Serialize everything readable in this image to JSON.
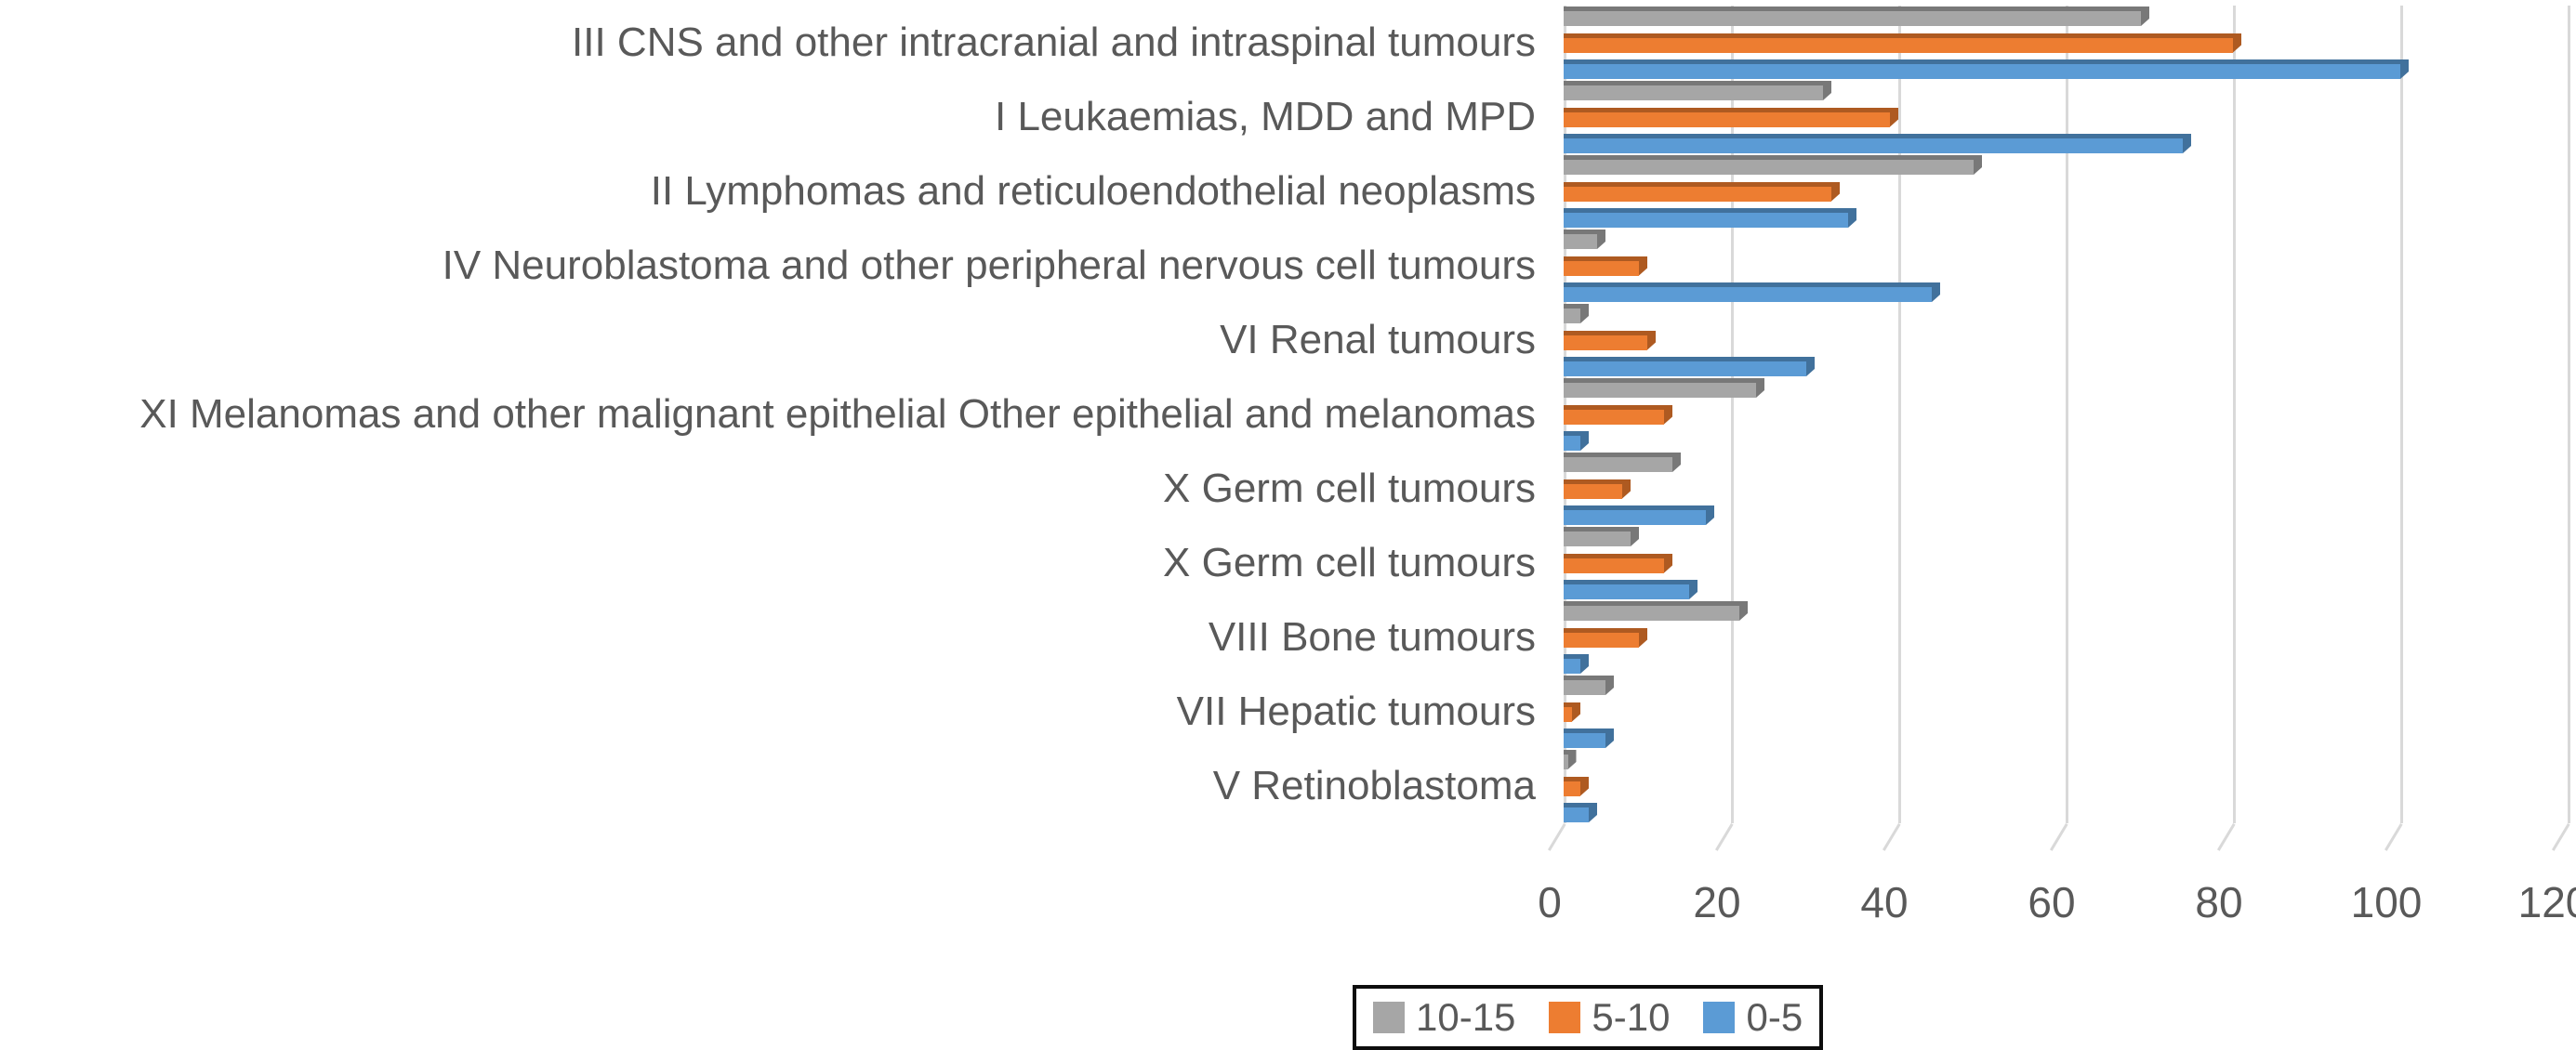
{
  "chart_data": {
    "type": "bar",
    "orientation": "horizontal",
    "title": "",
    "xlabel": "",
    "ylabel": "",
    "categories": [
      "III CNS and other intracranial and intraspinal tumours",
      "I Leukaemias, MDD and MPD",
      "II Lymphomas and reticuloendothelial neoplasms",
      "IV Neuroblastoma and other peripheral nervous cell tumours",
      "VI Renal tumours",
      "XI Melanomas and other malignant epithelial Other epithelial and melanomas",
      "X Germ cell tumours",
      "X Germ cell tumours",
      "VIII Bone tumours",
      "VII Hepatic tumours",
      "V Retinoblastoma"
    ],
    "series": [
      {
        "name": "10-15",
        "color": "#A6A6A6",
        "dark_color": "#787878",
        "values": [
          69,
          31,
          49,
          4,
          2,
          23,
          13,
          8,
          21,
          5,
          0.5
        ]
      },
      {
        "name": "5-10",
        "color": "#ED7D31",
        "dark_color": "#AE5A21",
        "values": [
          80,
          39,
          32,
          9,
          10,
          12,
          7,
          12,
          9,
          1,
          2
        ]
      },
      {
        "name": "0-5",
        "color": "#5B9BD5",
        "dark_color": "#41719C",
        "values": [
          100,
          74,
          34,
          44,
          29,
          2,
          17,
          15,
          2,
          5,
          3
        ]
      }
    ],
    "xlim": [
      0,
      120
    ],
    "xticks": [
      0,
      20,
      40,
      60,
      80,
      100,
      120
    ],
    "grid": "vertical-gridlines-on",
    "gridline_color": "#D9D9D9",
    "text_color": "#595959",
    "background_color": "#FFFFFF",
    "legend_position": "bottom",
    "legend_border_color": "#0D0D0D"
  }
}
